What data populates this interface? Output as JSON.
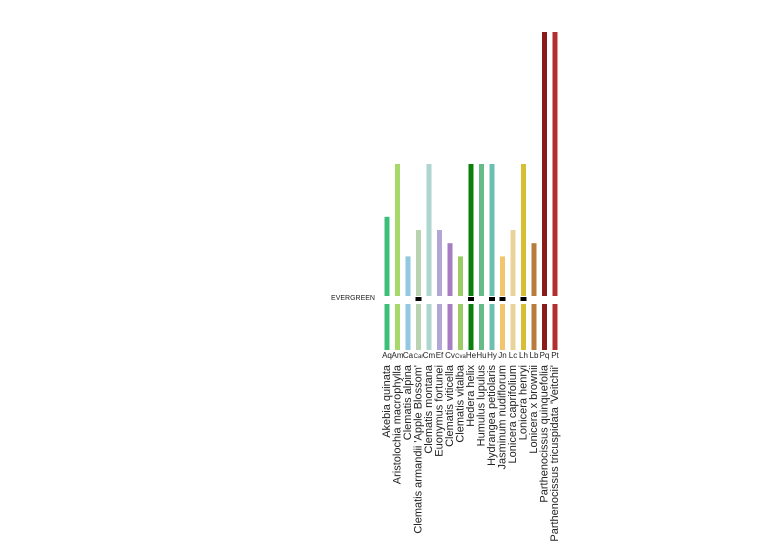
{
  "chart_data": {
    "type": "bar",
    "evergreen_label": "EVERGREEN",
    "categories": [
      "Aq",
      "Am",
      "Ca",
      "Car",
      "Cm",
      "Ef",
      "Cv",
      "Cva",
      "He",
      "Hu",
      "Hy",
      "Jn",
      "Lc",
      "Lh",
      "Lb",
      "Pq",
      "Pt"
    ],
    "names": [
      "Akebia quinata",
      "Aristolochia macrophylla",
      "Clematis alpina",
      "Clematis armandii 'Apple Blossom'",
      "Clematis montana",
      "Euonymus fortunei",
      "Clematis viticella",
      "Clematis vitalba",
      "Hedera helix",
      "Humulus lupulus",
      "Hydrangea petiolaris",
      "Jasminum nudiflorum",
      "Lonicera caprifolium",
      "Lonicera henryi",
      "Lonicera x brownii",
      "Parthenocissus quinquefolia",
      "Parthenocissus tricuspidata 'Veitchii'"
    ],
    "values": [
      6,
      10,
      3,
      5,
      10,
      5,
      4,
      3,
      10,
      10,
      10,
      3,
      5,
      10,
      4,
      20,
      20
    ],
    "evergreen": [
      false,
      false,
      false,
      true,
      false,
      false,
      false,
      false,
      true,
      false,
      true,
      true,
      false,
      true,
      false,
      false,
      false
    ],
    "colors": [
      "#3dbf7a",
      "#a6d96a",
      "#92c9e0",
      "#b9d3b0",
      "#aed6cf",
      "#b3a6d6",
      "#a67dc2",
      "#9ccc65",
      "#0a7f0a",
      "#66bb88",
      "#6bbfb0",
      "#f2c46b",
      "#e8d49a",
      "#d4c032",
      "#b87c3c",
      "#8b1a1a",
      "#b03030"
    ]
  }
}
